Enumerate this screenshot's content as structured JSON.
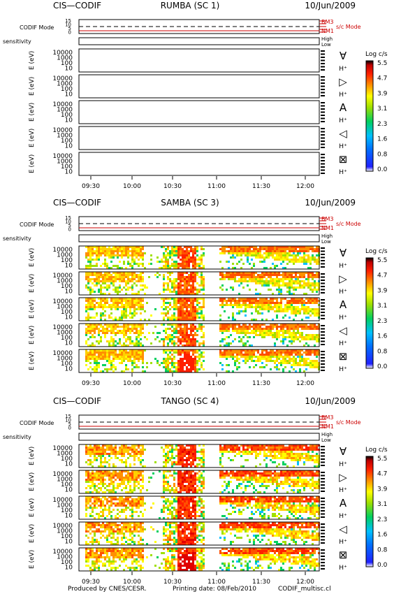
{
  "footer": {
    "produced_by": "Produced by CNES/CESR.",
    "printing_date": "Printing date: 08/Feb/2010",
    "program": "CODIF_multisc.cl"
  },
  "labels": {
    "codif_mode": "CODIF Mode",
    "sensitivity": "sensitivity",
    "ylabel": "E (eV)",
    "high": "High",
    "low": "Low",
    "mode_bm3": "BM3",
    "mode_nm1": "NM1",
    "sc_mode": "s/c Mode",
    "species": "H⁺",
    "mode_ticks": [
      "15",
      "10",
      "5",
      "0"
    ],
    "energy_ticks": [
      "10000",
      "1000",
      "100",
      "10"
    ],
    "direction_symbols": [
      "∀",
      "▷",
      "A",
      "◁",
      "⊠"
    ]
  },
  "colorbar": {
    "title": "Log c/s",
    "ticks": [
      "5.5",
      "4.7",
      "3.9",
      "3.1",
      "2.3",
      "1.6",
      "0.8",
      "0.0"
    ],
    "min": 0.0,
    "max": 5.5
  },
  "chart_data": [
    {
      "type": "heatmap",
      "instrument": "CIS—CODIF",
      "spacecraft": "RUMBA (SC 1)",
      "date": "10/Jun/2009",
      "xticks": [
        "09:30",
        "10:00",
        "10:30",
        "11:00",
        "11:30",
        "12:00"
      ],
      "data_present": false,
      "intensity": 0.0,
      "core_saturation": false
    },
    {
      "type": "heatmap",
      "instrument": "CIS—CODIF",
      "spacecraft": "SAMBA (SC 3)",
      "date": "10/Jun/2009",
      "xticks": [
        "09:30",
        "10:00",
        "10:30",
        "11:00",
        "11:30",
        "12:00"
      ],
      "data_present": true,
      "intensity": 0.75,
      "core_saturation": true
    },
    {
      "type": "heatmap",
      "instrument": "CIS—CODIF",
      "spacecraft": "TANGO (SC 4)",
      "date": "10/Jun/2009",
      "xticks": [
        "09:30",
        "10:00",
        "10:30",
        "11:00",
        "11:30",
        "12:00"
      ],
      "data_present": true,
      "intensity": 0.85,
      "core_saturation": true
    }
  ]
}
